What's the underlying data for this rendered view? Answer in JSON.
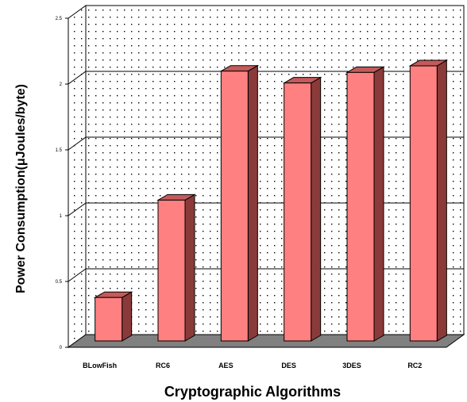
{
  "chart_data": {
    "type": "bar",
    "title": "",
    "xlabel": "Cryptographic Algorithms",
    "ylabel": "Power Consumption(μJoules/byte)",
    "categories": [
      "BLowFish",
      "RC6",
      "AES",
      "DES",
      "3DES",
      "RC2"
    ],
    "values": [
      0.33,
      1.07,
      2.05,
      1.96,
      2.04,
      2.09
    ],
    "ylim": [
      0,
      2.5
    ],
    "yticks": [
      0,
      0.5,
      1,
      1.5,
      2,
      2.5
    ],
    "ytick_labels": [
      "0",
      "0.5",
      "1",
      "1.5",
      "2",
      "2.5"
    ],
    "grid": true,
    "style": "3d-bar",
    "colors": {
      "bar_front": "#ff8080",
      "bar_side": "#8b3a3a",
      "bar_top": "#c45a5a",
      "floor": "#808080",
      "grid": "#000000",
      "dots": "#000000"
    }
  }
}
